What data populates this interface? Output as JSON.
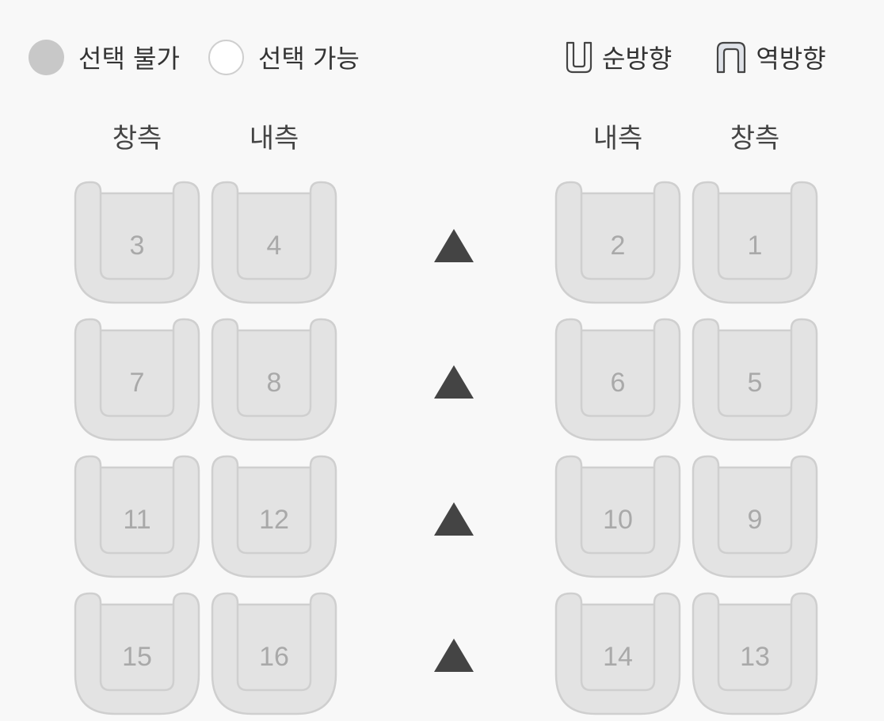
{
  "legend": {
    "unavailable_label": "선택 불가",
    "available_label": "선택 가능",
    "forward_label": "순방향",
    "reverse_label": "역방향"
  },
  "headers": {
    "left_window": "창측",
    "left_aisle": "내측",
    "right_aisle": "내측",
    "right_window": "창측"
  },
  "colors": {
    "background": "#f8f8f8",
    "seat_unavailable_fill": "#e3e3e3",
    "seat_stroke": "#cfcfcf",
    "seat_number": "#a9a9a9",
    "arrow": "#444444"
  },
  "rows": [
    {
      "left_window": "3",
      "left_aisle": "4",
      "right_aisle": "2",
      "right_window": "1",
      "direction_icon": "triangle-up-icon"
    },
    {
      "left_window": "7",
      "left_aisle": "8",
      "right_aisle": "6",
      "right_window": "5",
      "direction_icon": "triangle-up-icon"
    },
    {
      "left_window": "11",
      "left_aisle": "12",
      "right_aisle": "10",
      "right_window": "9",
      "direction_icon": "triangle-up-icon"
    },
    {
      "left_window": "15",
      "left_aisle": "16",
      "right_aisle": "14",
      "right_window": "13",
      "direction_icon": "triangle-up-icon"
    }
  ],
  "seat_status": "unavailable",
  "seat_orientation": "forward"
}
